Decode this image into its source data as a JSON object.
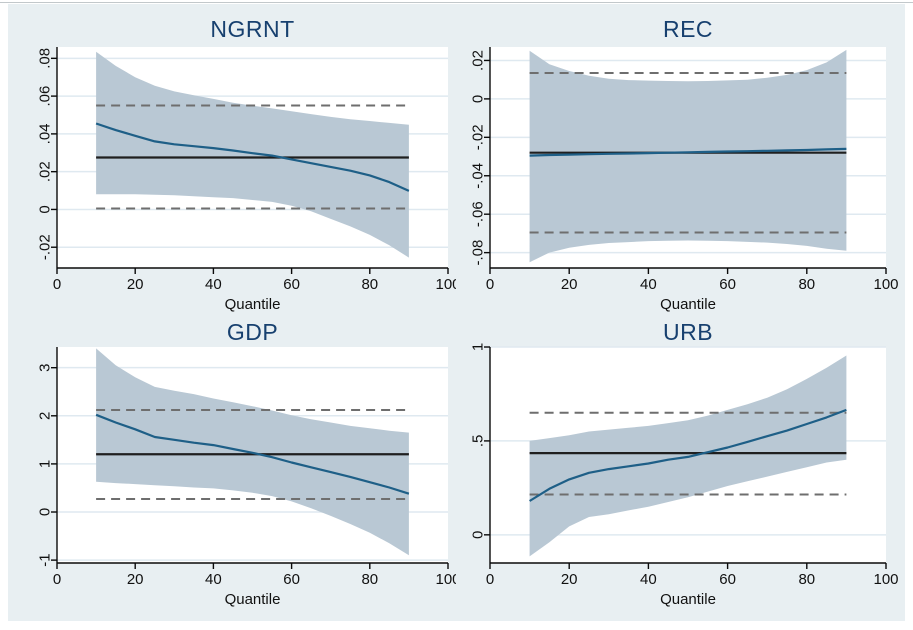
{
  "figure": {
    "kind": "2x2 quantile-regression coefficient plots (Stata style)",
    "xlabel_shared": "Quantile"
  },
  "colors": {
    "page_background": "#ffffff",
    "figure_background": "#e8eff2",
    "plot_background": "#ffffff",
    "grid": "#dfe9f0",
    "band_fill": "#b9c8d4",
    "quantile_line": "#1e5f87",
    "ols_line": "#1f1f1f",
    "ci_dashed": "#6e6e6e",
    "axis": "#0a0a0a",
    "title_text": "#17406f",
    "tick_text": "#111111",
    "top_rule": "#c2c8cb"
  },
  "chart_data": [
    {
      "type": "line",
      "title": "NGRNT",
      "xlabel": "Quantile",
      "xlim": [
        0,
        100
      ],
      "xticks": [
        0,
        20,
        40,
        60,
        80,
        100
      ],
      "xtick_labels": [
        "0",
        "20",
        "40",
        "60",
        "80",
        "100"
      ],
      "ylim": [
        -0.031,
        0.086
      ],
      "yticks": [
        -0.02,
        0,
        0.02,
        0.04,
        0.06,
        0.08
      ],
      "ytick_labels": [
        "-.02",
        "0",
        ".02",
        ".04",
        ".06",
        ".08"
      ],
      "x": [
        10,
        15,
        20,
        25,
        30,
        35,
        40,
        45,
        50,
        55,
        60,
        65,
        70,
        75,
        80,
        85,
        90
      ],
      "series": [
        {
          "name": "quantile estimate",
          "values": [
            0.0455,
            0.042,
            0.039,
            0.036,
            0.0345,
            0.0335,
            0.0325,
            0.0312,
            0.0298,
            0.0285,
            0.0265,
            0.0245,
            0.0225,
            0.0205,
            0.018,
            0.0145,
            0.0098
          ]
        }
      ],
      "band": {
        "name": "95% CI of quantile estimate",
        "upper": [
          0.0835,
          0.076,
          0.07,
          0.0655,
          0.0625,
          0.0605,
          0.0585,
          0.0565,
          0.055,
          0.0535,
          0.052,
          0.0505,
          0.049,
          0.0478,
          0.0468,
          0.0458,
          0.0448
        ],
        "lower": [
          0.008,
          0.008,
          0.008,
          0.0078,
          0.0075,
          0.007,
          0.0065,
          0.006,
          0.005,
          0.004,
          0.002,
          -0.001,
          -0.005,
          -0.009,
          -0.0135,
          -0.019,
          -0.0255
        ]
      },
      "ols_line": 0.0275,
      "ols_ci_dashed": [
        0.0005,
        0.055
      ],
      "grid": "horizontal",
      "legend": "none"
    },
    {
      "type": "line",
      "title": "REC",
      "xlabel": "Quantile",
      "xlim": [
        0,
        100
      ],
      "xticks": [
        0,
        20,
        40,
        60,
        80,
        100
      ],
      "xtick_labels": [
        "0",
        "20",
        "40",
        "60",
        "80",
        "100"
      ],
      "ylim": [
        -0.088,
        0.027
      ],
      "yticks": [
        -0.08,
        -0.06,
        -0.04,
        -0.02,
        0,
        0.02
      ],
      "ytick_labels": [
        "-.08",
        "-.06",
        "-.04",
        "-.02",
        "0",
        ".02"
      ],
      "x": [
        10,
        15,
        20,
        25,
        30,
        35,
        40,
        45,
        50,
        55,
        60,
        65,
        70,
        75,
        80,
        85,
        90
      ],
      "series": [
        {
          "name": "quantile estimate",
          "values": [
            -0.0295,
            -0.0292,
            -0.029,
            -0.0288,
            -0.0286,
            -0.0284,
            -0.0282,
            -0.028,
            -0.0278,
            -0.0276,
            -0.0274,
            -0.0272,
            -0.027,
            -0.0268,
            -0.0266,
            -0.0263,
            -0.026
          ]
        }
      ],
      "band": {
        "name": "95% CI of quantile estimate",
        "upper": [
          0.025,
          0.018,
          0.0145,
          0.012,
          0.0105,
          0.0098,
          0.0095,
          0.0093,
          0.0092,
          0.0093,
          0.0096,
          0.01,
          0.011,
          0.0125,
          0.015,
          0.019,
          0.0255
        ],
        "lower": [
          -0.085,
          -0.08,
          -0.0775,
          -0.076,
          -0.075,
          -0.0745,
          -0.074,
          -0.0738,
          -0.0737,
          -0.0738,
          -0.074,
          -0.0744,
          -0.0748,
          -0.0755,
          -0.0765,
          -0.078,
          -0.079
        ]
      },
      "ols_line": -0.028,
      "ols_ci_dashed": [
        -0.0695,
        0.0135
      ],
      "grid": "horizontal",
      "legend": "none"
    },
    {
      "type": "line",
      "title": "GDP",
      "xlabel": "Quantile",
      "xlim": [
        0,
        100
      ],
      "xticks": [
        0,
        20,
        40,
        60,
        80,
        100
      ],
      "xtick_labels": [
        "0",
        "20",
        "40",
        "60",
        "80",
        "100"
      ],
      "ylim": [
        -1.06,
        3.43
      ],
      "yticks": [
        -1,
        0,
        1,
        2,
        3
      ],
      "ytick_labels": [
        "-1",
        "0",
        "1",
        "2",
        "3"
      ],
      "x": [
        10,
        15,
        20,
        25,
        30,
        35,
        40,
        45,
        50,
        55,
        60,
        65,
        70,
        75,
        80,
        85,
        90
      ],
      "series": [
        {
          "name": "quantile estimate",
          "values": [
            2.02,
            1.86,
            1.72,
            1.56,
            1.5,
            1.44,
            1.39,
            1.31,
            1.23,
            1.14,
            1.03,
            0.93,
            0.83,
            0.73,
            0.62,
            0.51,
            0.38
          ]
        }
      ],
      "band": {
        "name": "95% CI of quantile estimate",
        "upper": [
          3.4,
          3.05,
          2.8,
          2.6,
          2.52,
          2.45,
          2.36,
          2.28,
          2.2,
          2.11,
          2.01,
          1.93,
          1.86,
          1.79,
          1.74,
          1.69,
          1.65
        ],
        "lower": [
          0.63,
          0.6,
          0.58,
          0.555,
          0.535,
          0.51,
          0.49,
          0.45,
          0.4,
          0.33,
          0.22,
          0.08,
          -0.08,
          -0.25,
          -0.43,
          -0.65,
          -0.9
        ]
      },
      "ols_line": 1.2,
      "ols_ci_dashed": [
        0.27,
        2.12
      ],
      "grid": "horizontal",
      "legend": "none"
    },
    {
      "type": "line",
      "title": "URB",
      "xlabel": "Quantile",
      "xlim": [
        0,
        100
      ],
      "xticks": [
        0,
        20,
        40,
        60,
        80,
        100
      ],
      "xtick_labels": [
        "0",
        "20",
        "40",
        "60",
        "80",
        "100"
      ],
      "ylim": [
        -0.15,
        1.0
      ],
      "yticks": [
        0,
        0.5,
        1
      ],
      "ytick_labels": [
        "0",
        ".5",
        "1"
      ],
      "x": [
        10,
        15,
        20,
        25,
        30,
        35,
        40,
        45,
        50,
        55,
        60,
        65,
        70,
        75,
        80,
        85,
        90
      ],
      "series": [
        {
          "name": "quantile estimate",
          "values": [
            0.18,
            0.245,
            0.295,
            0.33,
            0.35,
            0.365,
            0.38,
            0.4,
            0.415,
            0.44,
            0.465,
            0.495,
            0.525,
            0.555,
            0.59,
            0.625,
            0.665
          ]
        }
      ],
      "band": {
        "name": "95% CI of quantile estimate",
        "upper": [
          0.5,
          0.515,
          0.53,
          0.55,
          0.56,
          0.57,
          0.58,
          0.595,
          0.61,
          0.635,
          0.665,
          0.695,
          0.73,
          0.775,
          0.83,
          0.89,
          0.955
        ],
        "lower": [
          -0.115,
          -0.04,
          0.045,
          0.095,
          0.11,
          0.13,
          0.15,
          0.175,
          0.2,
          0.23,
          0.26,
          0.285,
          0.31,
          0.335,
          0.36,
          0.385,
          0.4
        ]
      },
      "ols_line": 0.435,
      "ols_ci_dashed": [
        0.215,
        0.65
      ],
      "grid": "horizontal",
      "legend": "none"
    }
  ]
}
